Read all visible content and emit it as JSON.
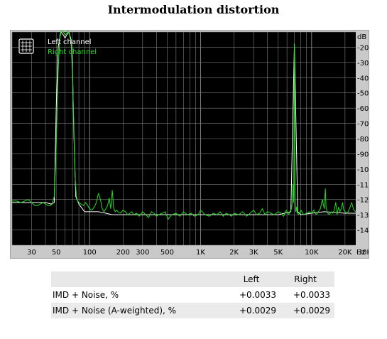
{
  "chart_data": {
    "type": "line",
    "title": "Intermodulation distortion",
    "xlabel": "Hz",
    "ylabel": "dB",
    "x_scale": "log",
    "xlim": [
      20,
      25000
    ],
    "ylim": [
      -150,
      -10
    ],
    "grid": true,
    "legend_position": "top-left",
    "x_tick_labels": [
      "30",
      "50",
      "100",
      "200",
      "300",
      "500",
      "1K",
      "2K",
      "3K",
      "5K",
      "10K",
      "20K",
      "30K"
    ],
    "x_tick_values": [
      30,
      50,
      100,
      200,
      300,
      500,
      1000,
      2000,
      3000,
      5000,
      10000,
      20000,
      30000
    ],
    "y_tick_labels": [
      "-20",
      "-30",
      "-40",
      "-50",
      "-60",
      "-70",
      "-80",
      "-90",
      "-100",
      "-110",
      "-120",
      "-130",
      "-140"
    ],
    "y_tick_values": [
      -20,
      -30,
      -40,
      -50,
      -60,
      -70,
      -80,
      -90,
      -100,
      -110,
      -120,
      -130,
      -140
    ],
    "series": [
      {
        "name": "Left channel",
        "color": "#ffffff",
        "x": [
          20,
          25,
          30,
          35,
          40,
          45,
          48,
          50,
          52,
          55,
          58,
          60,
          62,
          65,
          68,
          70,
          72,
          75,
          80,
          90,
          100,
          120,
          140,
          160,
          180,
          200,
          300,
          500,
          1000,
          2000,
          5000,
          6500,
          7000,
          7500,
          8000,
          10000,
          13000,
          20000,
          25000
        ],
        "y": [
          -122,
          -122,
          -122,
          -122,
          -122,
          -123,
          -122,
          -60,
          -20,
          -10,
          -12,
          -14,
          -12,
          -10,
          -15,
          -30,
          -75,
          -118,
          -123,
          -128,
          -128,
          -128,
          -129,
          -130,
          -130,
          -130,
          -130,
          -130,
          -130,
          -130,
          -130,
          -128,
          -18,
          -128,
          -130,
          -129,
          -128,
          -129,
          -129
        ]
      },
      {
        "name": "Right channel",
        "color": "#1fdc1f",
        "x": [
          20,
          22,
          24,
          26,
          28,
          30,
          32,
          34,
          36,
          38,
          40,
          42,
          44,
          46,
          48,
          50,
          52,
          54,
          56,
          58,
          60,
          62,
          64,
          66,
          68,
          70,
          72,
          74,
          76,
          78,
          80,
          84,
          88,
          92,
          96,
          100,
          105,
          110,
          115,
          120,
          125,
          130,
          135,
          140,
          145,
          150,
          155,
          160,
          165,
          170,
          175,
          180,
          190,
          200,
          210,
          220,
          230,
          240,
          250,
          265,
          280,
          300,
          320,
          340,
          360,
          380,
          400,
          420,
          450,
          480,
          510,
          550,
          600,
          650,
          700,
          760,
          820,
          880,
          950,
          1000,
          1100,
          1200,
          1300,
          1400,
          1500,
          1600,
          1700,
          1800,
          1900,
          2000,
          2200,
          2400,
          2600,
          2800,
          3000,
          3200,
          3400,
          3600,
          3800,
          4000,
          4300,
          4600,
          5000,
          5300,
          5600,
          5900,
          6200,
          6400,
          6600,
          6700,
          6800,
          6900,
          7000,
          7100,
          7200,
          7300,
          7400,
          7500,
          7600,
          7800,
          8000,
          8500,
          9000,
          9500,
          10000,
          10500,
          11000,
          11500,
          12000,
          12500,
          13000,
          13300,
          13500,
          13800,
          14000,
          14500,
          15000,
          15500,
          16000,
          16500,
          17000,
          17500,
          18000,
          18500,
          19000,
          19500,
          20000,
          21000,
          22000,
          23000,
          24000,
          25000
        ],
        "y": [
          -121,
          -121,
          -122,
          -121,
          -120,
          -122,
          -124,
          -124,
          -123,
          -122,
          -123,
          -124,
          -124,
          -123,
          -118,
          -85,
          -35,
          -12,
          -8,
          -10,
          -12,
          -11,
          -9,
          -12,
          -18,
          -35,
          -70,
          -105,
          -118,
          -121,
          -122,
          -123,
          -124,
          -122,
          -124,
          -126,
          -127,
          -125,
          -122,
          -116,
          -120,
          -126,
          -128,
          -126,
          -124,
          -119,
          -126,
          -114,
          -126,
          -128,
          -127,
          -128,
          -129,
          -127,
          -128,
          -130,
          -129,
          -128,
          -130,
          -129,
          -131,
          -128,
          -130,
          -132,
          -128,
          -129,
          -131,
          -130,
          -129,
          -128,
          -133,
          -130,
          -129,
          -131,
          -128,
          -130,
          -129,
          -131,
          -130,
          -127,
          -130,
          -131,
          -129,
          -130,
          -128,
          -131,
          -129,
          -130,
          -131,
          -129,
          -130,
          -128,
          -131,
          -129,
          -127,
          -130,
          -129,
          -126,
          -130,
          -128,
          -129,
          -130,
          -128,
          -129,
          -131,
          -127,
          -130,
          -128,
          -126,
          -122,
          -110,
          -122,
          -18,
          -118,
          -128,
          -125,
          -129,
          -128,
          -130,
          -129,
          -127,
          -130,
          -129,
          -128,
          -129,
          -127,
          -130,
          -128,
          -126,
          -120,
          -126,
          -113,
          -125,
          -128,
          -129,
          -130,
          -128,
          -129,
          -127,
          -122,
          -130,
          -125,
          -128,
          -126,
          -122,
          -127,
          -128,
          -129,
          -126,
          -122,
          -127,
          -128
        ]
      }
    ]
  },
  "table": {
    "headers": [
      "",
      "Left",
      "Right"
    ],
    "rows": [
      {
        "label": "IMD + Noise, %",
        "left": "+0.0033",
        "right": "+0.0033"
      },
      {
        "label": "IMD + Noise (A-weighted), %",
        "left": "+0.0029",
        "right": "+0.0029"
      }
    ]
  },
  "colors": {
    "plot_background": "#000000",
    "frame_background": "#c9c9c9",
    "grid": "#808080",
    "legend_left": "#ffffff",
    "legend_right": "#1fdc1f"
  },
  "icons": {
    "legend_icon": "grid-icon"
  }
}
